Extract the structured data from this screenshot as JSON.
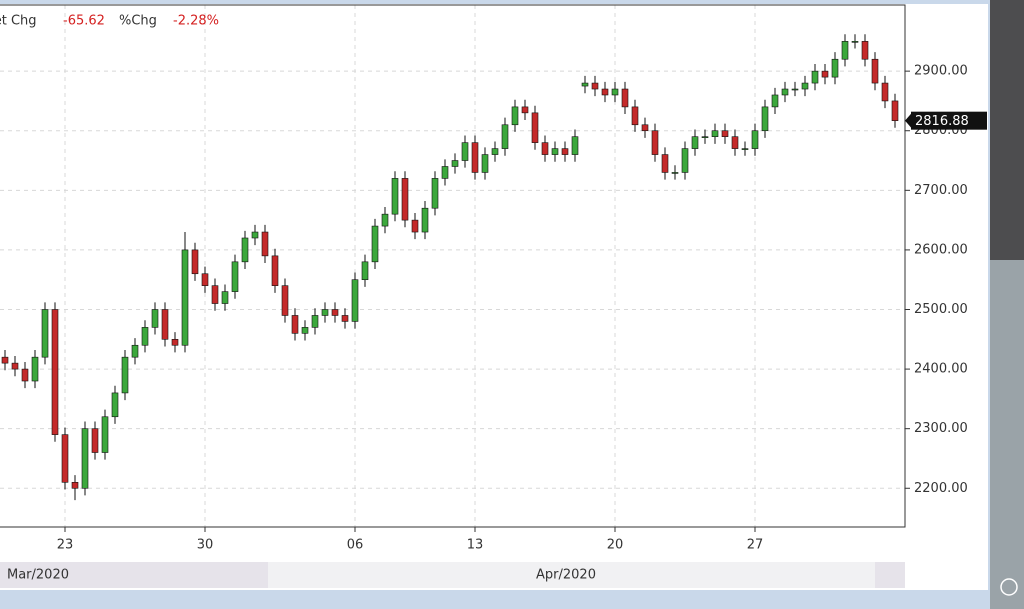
{
  "header": {
    "net_chg_label": "Net Chg",
    "net_chg": "-65.62",
    "pct_chg_label": "%Chg",
    "pct_chg": "-2.28%"
  },
  "chart_data": {
    "type": "candlestick",
    "categories": [
      null,
      null,
      null,
      null,
      null,
      null,
      "23",
      null,
      null,
      null,
      null,
      null,
      null,
      null,
      null,
      null,
      null,
      null,
      null,
      null,
      "30",
      null,
      null,
      null,
      null,
      null,
      null,
      null,
      null,
      null,
      null,
      null,
      null,
      null,
      null,
      "06",
      null,
      null,
      null,
      null,
      null,
      null,
      null,
      null,
      null,
      null,
      null,
      "13",
      null,
      null,
      null,
      null,
      null,
      null,
      null,
      null,
      null,
      null,
      null,
      null,
      null,
      "20",
      null,
      null,
      null,
      null,
      null,
      null,
      null,
      null,
      null,
      null,
      null,
      null,
      null,
      "27",
      null,
      null,
      null,
      null,
      null,
      null,
      null,
      null,
      null,
      null,
      null,
      null,
      null,
      null
    ],
    "periods": [
      "Mar/2020",
      "Apr/2020"
    ],
    "open": [
      2420,
      2410,
      2400,
      2380,
      2420,
      2500,
      2290,
      2210,
      2200,
      2300,
      2260,
      2320,
      2360,
      2420,
      2440,
      2470,
      2500,
      2450,
      2440,
      2600,
      2560,
      2540,
      2510,
      2530,
      2580,
      2620,
      2630,
      2590,
      2540,
      2490,
      2460,
      2470,
      2490,
      2500,
      2490,
      2480,
      2550,
      2580,
      2640,
      2660,
      2720,
      2650,
      2630,
      2670,
      2720,
      2740,
      2750,
      2780,
      2730,
      2760,
      2770,
      2810,
      2840,
      2830,
      2780,
      2760,
      2770,
      2760,
      2875,
      2880,
      2870,
      2860,
      2870,
      2840,
      2810,
      2800,
      2760,
      2730,
      2730,
      2770,
      2790,
      2790,
      2800,
      2790,
      2770,
      2770,
      2800,
      2840,
      2860,
      2870,
      2870,
      2880,
      2900,
      2890,
      2920,
      2950,
      2950,
      2920,
      2880,
      2850
    ],
    "high": [
      2432,
      2422,
      2412,
      2432,
      2512,
      2512,
      2302,
      2222,
      2312,
      2312,
      2332,
      2372,
      2432,
      2452,
      2482,
      2512,
      2512,
      2462,
      2630,
      2612,
      2572,
      2552,
      2542,
      2592,
      2632,
      2642,
      2642,
      2602,
      2552,
      2502,
      2482,
      2502,
      2512,
      2512,
      2502,
      2562,
      2592,
      2652,
      2672,
      2732,
      2732,
      2662,
      2682,
      2732,
      2752,
      2762,
      2792,
      2792,
      2772,
      2782,
      2822,
      2852,
      2852,
      2842,
      2792,
      2782,
      2782,
      2802,
      2892,
      2892,
      2882,
      2882,
      2882,
      2852,
      2822,
      2812,
      2772,
      2742,
      2782,
      2802,
      2802,
      2812,
      2812,
      2802,
      2782,
      2812,
      2852,
      2872,
      2882,
      2882,
      2892,
      2912,
      2912,
      2932,
      2962,
      2962,
      2962,
      2932,
      2892,
      2862
    ],
    "low": [
      2398,
      2388,
      2368,
      2368,
      2408,
      2278,
      2198,
      2180,
      2188,
      2248,
      2248,
      2308,
      2348,
      2408,
      2428,
      2458,
      2438,
      2428,
      2428,
      2548,
      2528,
      2498,
      2498,
      2518,
      2568,
      2608,
      2578,
      2528,
      2478,
      2448,
      2448,
      2458,
      2478,
      2478,
      2468,
      2468,
      2538,
      2568,
      2628,
      2648,
      2638,
      2618,
      2618,
      2658,
      2708,
      2728,
      2738,
      2718,
      2718,
      2748,
      2758,
      2798,
      2818,
      2768,
      2748,
      2748,
      2748,
      2748,
      2863,
      2858,
      2848,
      2848,
      2828,
      2798,
      2788,
      2748,
      2718,
      2718,
      2718,
      2758,
      2778,
      2778,
      2778,
      2758,
      2758,
      2758,
      2788,
      2828,
      2848,
      2858,
      2858,
      2868,
      2878,
      2878,
      2908,
      2938,
      2908,
      2868,
      2838,
      2805
    ],
    "close": [
      2410,
      2400,
      2380,
      2420,
      2500,
      2290,
      2210,
      2200,
      2300,
      2260,
      2320,
      2360,
      2420,
      2440,
      2470,
      2500,
      2450,
      2440,
      2600,
      2560,
      2540,
      2510,
      2530,
      2580,
      2620,
      2630,
      2590,
      2540,
      2490,
      2460,
      2470,
      2490,
      2500,
      2490,
      2480,
      2550,
      2580,
      2640,
      2660,
      2720,
      2650,
      2630,
      2670,
      2720,
      2740,
      2750,
      2780,
      2730,
      2760,
      2770,
      2810,
      2840,
      2830,
      2780,
      2760,
      2770,
      2760,
      2790,
      2880,
      2870,
      2860,
      2870,
      2840,
      2810,
      2800,
      2760,
      2730,
      2730,
      2770,
      2790,
      2790,
      2800,
      2790,
      2770,
      2770,
      2800,
      2840,
      2860,
      2870,
      2870,
      2880,
      2900,
      2890,
      2920,
      2950,
      2950,
      2920,
      2880,
      2850,
      2816.88
    ],
    "up_color": "#3ca83c",
    "down_color": "#c42a2a",
    "last_price": 2816.88,
    "ylim": [
      2135,
      3011
    ],
    "yticks": [
      {
        "value": 2200,
        "label": "2200.00"
      },
      {
        "value": 2300,
        "label": "2300.00"
      },
      {
        "value": 2400,
        "label": "2400.00"
      },
      {
        "value": 2500,
        "label": "2500.00"
      },
      {
        "value": 2600,
        "label": "2600.00"
      },
      {
        "value": 2700,
        "label": "2700.00"
      },
      {
        "value": 2800,
        "label": "2800.00"
      },
      {
        "value": 2900,
        "label": "2900.00"
      }
    ],
    "grid": true
  }
}
